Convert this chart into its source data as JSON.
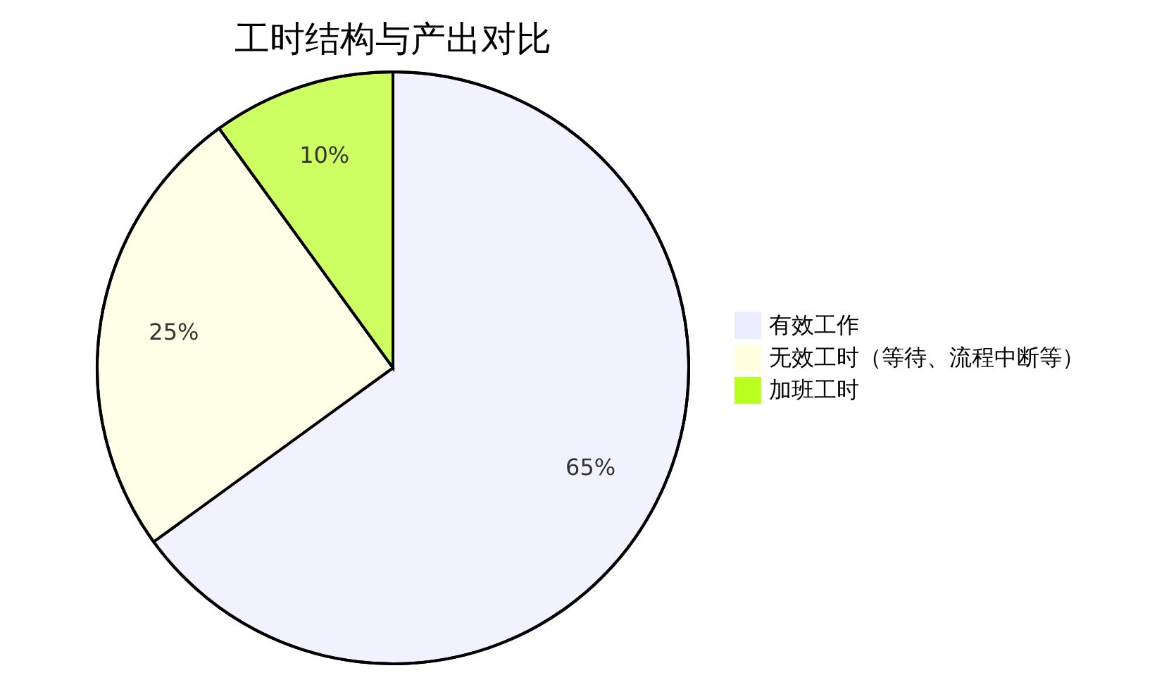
{
  "chart_data": {
    "type": "pie",
    "title": "工时结构与产出对比",
    "categories": [
      "有效工作",
      "无效工时（等待、流程中断等）",
      "加班工时"
    ],
    "values": [
      65,
      25,
      10
    ],
    "colors": [
      "#ececff",
      "#ffffde",
      "#b9ff20"
    ],
    "value_labels": [
      "65%",
      "25%",
      "10%"
    ],
    "legend": "right"
  }
}
